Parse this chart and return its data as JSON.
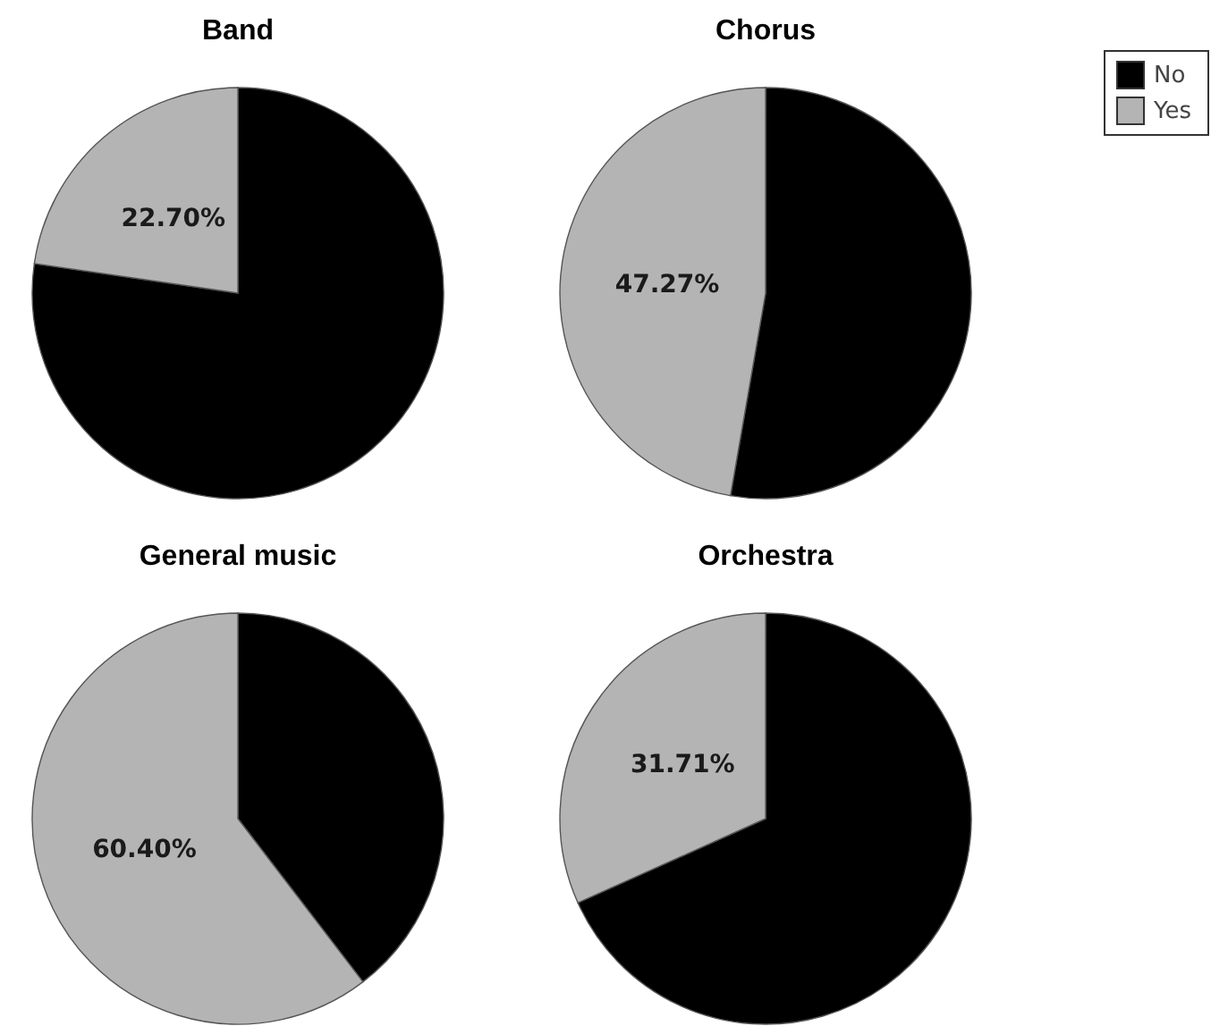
{
  "chart_data": [
    {
      "type": "pie",
      "title": "Band",
      "categories": [
        null,
        null
      ],
      "values": [
        77.3,
        22.7
      ],
      "colors": [
        "#000000",
        "#b4b4b4"
      ],
      "value_labels": [
        null,
        "22.70%"
      ]
    },
    {
      "type": "pie",
      "title": "Chorus",
      "categories": [
        "No",
        "Yes"
      ],
      "values": [
        52.73,
        47.27
      ],
      "colors": [
        "#000000",
        "#b4b4b4"
      ],
      "value_labels": [
        null,
        "47.27%"
      ],
      "legend": "top right"
    },
    {
      "type": "pie",
      "title": "General music",
      "categories": [
        null,
        null
      ],
      "values": [
        39.6,
        60.4
      ],
      "colors": [
        "#000000",
        "#b4b4b4"
      ],
      "value_labels": [
        null,
        "60.40%"
      ]
    },
    {
      "type": "pie",
      "title": "Orchestra",
      "categories": [
        null,
        null
      ],
      "values": [
        68.29,
        31.71
      ],
      "colors": [
        "#000000",
        "#b4b4b4"
      ],
      "value_labels": [
        null,
        "31.71%"
      ]
    }
  ]
}
